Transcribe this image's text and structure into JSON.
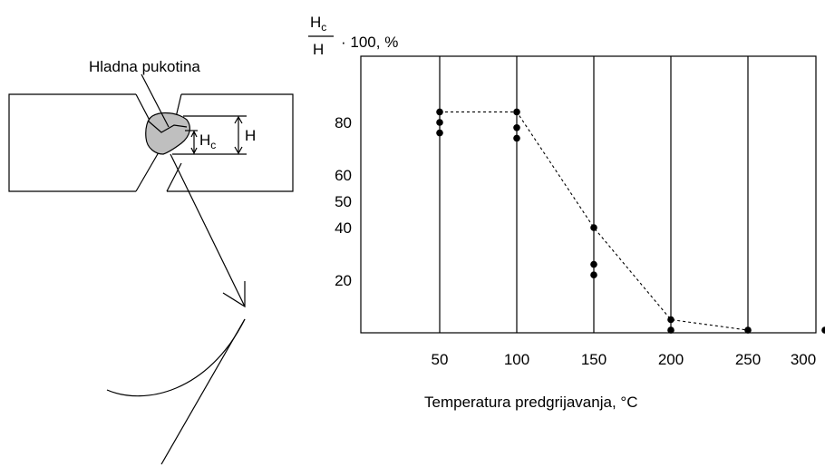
{
  "diagram": {
    "crack_label": "Hladna pukotina",
    "hc_main": "H",
    "hc_sub": "c",
    "h_label": "H"
  },
  "chart_data": {
    "type": "scatter",
    "ylabel_numerator_main": "H",
    "ylabel_numerator_sub": "c",
    "ylabel_denominator": "H",
    "ylabel_suffix": "· 100, %",
    "xlabel": "Temperatura predgrijavanja, ",
    "xlabel_unit": "°C",
    "x_ticks": [
      50,
      100,
      150,
      200,
      250,
      300
    ],
    "y_ticks": [
      20,
      40,
      50,
      60,
      80
    ],
    "xlim": [
      0,
      310
    ],
    "ylim": [
      0,
      100
    ],
    "grid_vertical": [
      50,
      100,
      150,
      200,
      250
    ],
    "series": [
      {
        "marker": "dot",
        "x": [
          50,
          50,
          50,
          100,
          100,
          100,
          150,
          150,
          150,
          200,
          200,
          250,
          300
        ],
        "y": [
          84,
          80,
          76,
          84,
          78,
          74,
          40,
          26,
          22,
          5,
          1,
          1,
          1
        ]
      }
    ],
    "trend": {
      "style": "dashed",
      "x": [
        50,
        100,
        150,
        200,
        250
      ],
      "y": [
        84,
        84,
        40,
        5,
        1
      ]
    }
  }
}
